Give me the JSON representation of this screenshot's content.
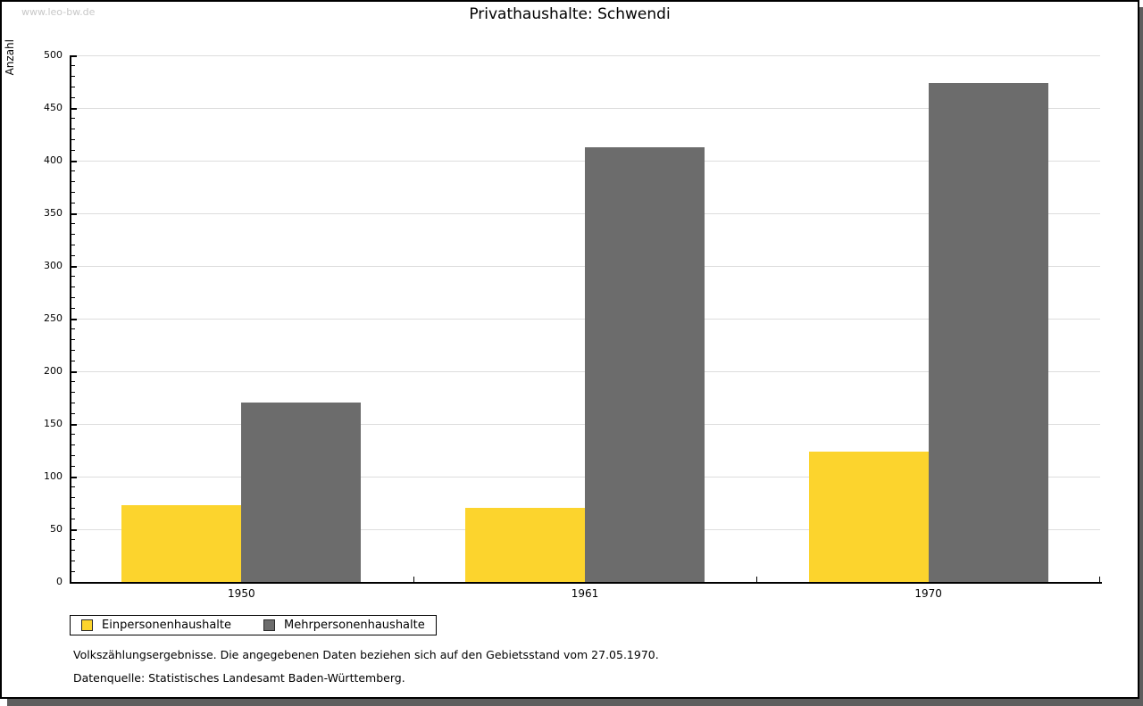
{
  "watermark": "www.leo-bw.de",
  "chart_data": {
    "type": "bar",
    "title": "Privathaushalte: Schwendi",
    "ylabel": "Anzahl",
    "xlabel": "",
    "categories": [
      "1950",
      "1961",
      "1970"
    ],
    "series": [
      {
        "name": "Einpersonenhaushalte",
        "color": "#FCD42D",
        "values": [
          73,
          70,
          124
        ]
      },
      {
        "name": "Mehrpersonenhaushalte",
        "color": "#6C6C6C",
        "values": [
          170,
          413,
          474
        ]
      }
    ],
    "ylim": [
      0,
      500
    ],
    "ytick_major": 50,
    "ytick_minor": 10,
    "grid": "horizontal-major-only",
    "legend_position": "bottom-left"
  },
  "footer": {
    "line1": "Volkszählungsergebnisse. Die angegebenen Daten beziehen sich auf den Gebietsstand vom 27.05.1970.",
    "line2": "Datenquelle: Statistisches Landesamt Baden-Württemberg."
  },
  "colors": {
    "gridline": "#DDDDDD",
    "axis": "#000000",
    "watermark_text": "#C8C8C8",
    "page_shadow": "#5E5E5E"
  }
}
